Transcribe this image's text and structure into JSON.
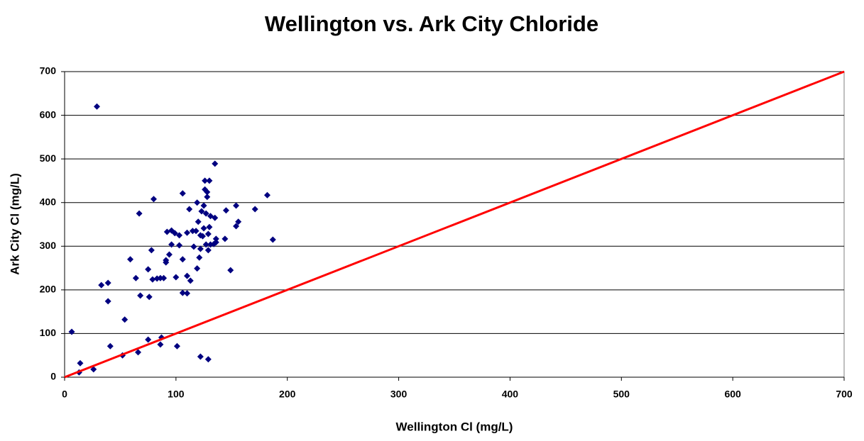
{
  "chart_data": {
    "type": "scatter",
    "title": "Wellington vs. Ark City Chloride",
    "x_label": "Wellington Cl (mg/L)",
    "y_label": "Ark City Cl (mg/L)",
    "xlim": [
      0,
      700
    ],
    "ylim": [
      0,
      700
    ],
    "xticks": [
      0,
      100,
      200,
      300,
      400,
      500,
      600,
      700
    ],
    "yticks": [
      0,
      100,
      200,
      300,
      400,
      500,
      600,
      700
    ],
    "grid": true,
    "series": [
      {
        "color": "#000080",
        "marker": "diamond",
        "x": [
          6.4,
          29,
          14,
          13,
          26,
          33,
          39,
          39,
          41,
          54,
          52,
          59,
          64,
          66,
          67,
          68,
          75,
          76,
          75,
          78,
          80,
          79,
          83,
          86,
          86,
          87,
          89,
          91,
          91,
          92,
          94,
          96,
          96,
          99,
          100,
          101,
          103,
          103,
          106,
          106,
          106,
          110,
          110,
          110,
          112,
          113,
          115,
          116,
          118,
          119,
          119,
          120,
          122,
          121,
          122,
          122,
          123,
          124,
          125,
          125,
          126,
          126,
          127,
          127,
          128,
          128,
          129,
          129,
          129,
          130,
          130,
          131,
          134,
          135,
          135,
          136,
          136,
          131,
          145,
          144,
          149,
          154,
          154,
          156,
          171,
          182,
          187
        ],
        "values": [
          104,
          620,
          32,
          11,
          18,
          211,
          216,
          174,
          71,
          132,
          50,
          270,
          227,
          57,
          375,
          187,
          247,
          184,
          86,
          291,
          408,
          224,
          226,
          227,
          75,
          91,
          227,
          263,
          268,
          333,
          281,
          304,
          336,
          330,
          229,
          71,
          302,
          325,
          193,
          421,
          270,
          331,
          192,
          232,
          385,
          221,
          335,
          299,
          335,
          249,
          400,
          356,
          325,
          274,
          294,
          47,
          380,
          323,
          341,
          393,
          430,
          450,
          375,
          304,
          413,
          424,
          291,
          41,
          328,
          344,
          450,
          304,
          305,
          489,
          365,
          309,
          317,
          369,
          382,
          317,
          245,
          393,
          346,
          356,
          385,
          417,
          315
        ]
      },
      {
        "color": "#ff0000",
        "mode": "line",
        "x": [
          0,
          700
        ],
        "values": [
          0,
          700
        ]
      }
    ]
  }
}
